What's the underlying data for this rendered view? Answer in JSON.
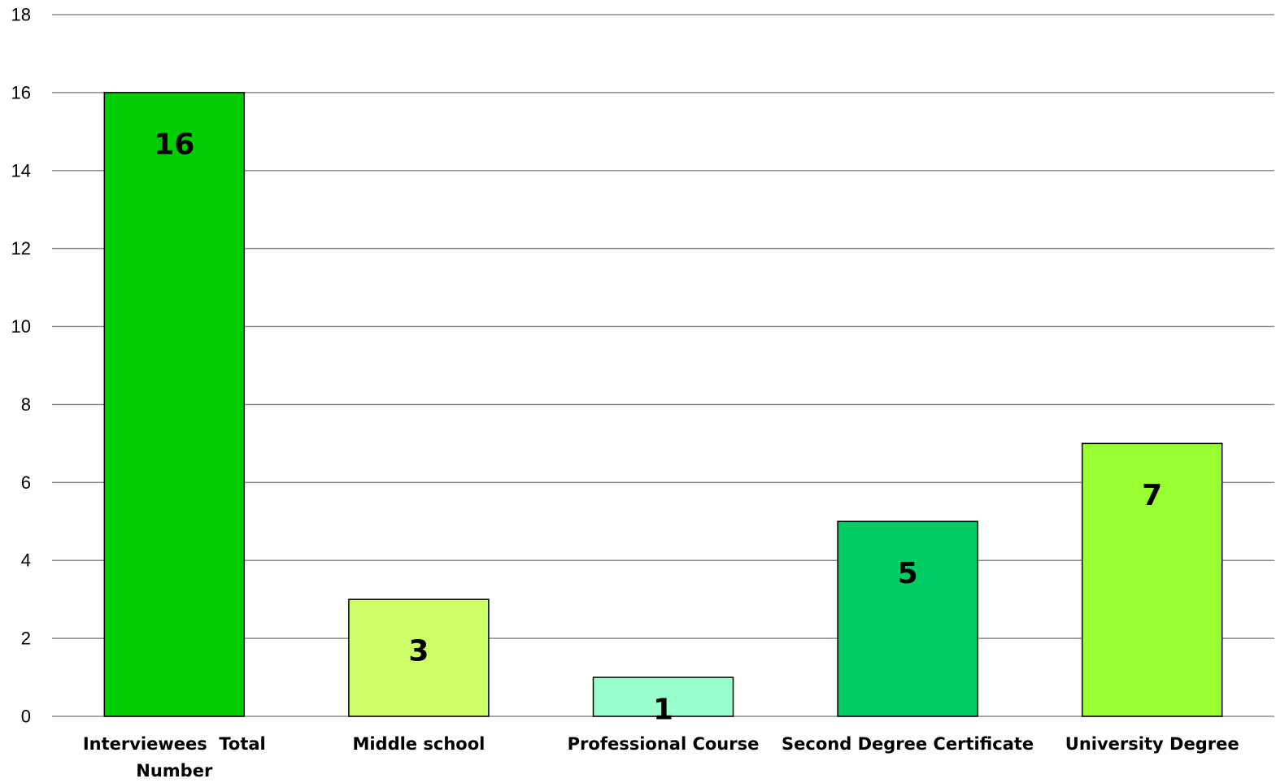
{
  "chart_data": {
    "type": "bar",
    "categories": [
      [
        "Interviewees  Total",
        "Number"
      ],
      [
        "Middle school"
      ],
      [
        "Professional Course"
      ],
      [
        "Second Degree Certificate"
      ],
      [
        "University Degree"
      ]
    ],
    "values": [
      16,
      3,
      1,
      5,
      7
    ],
    "data_labels": [
      "16",
      "3",
      "1",
      "5",
      "7"
    ],
    "colors": [
      "#00cc00",
      "#ccff66",
      "#99ffcc",
      "#00cc66",
      "#99ff33"
    ],
    "title": "",
    "xlabel": "",
    "ylabel": "",
    "ylim": [
      0,
      18
    ],
    "yticks": [
      "0",
      "2",
      "4",
      "6",
      "8",
      "10",
      "12",
      "14",
      "16",
      "18"
    ],
    "grid": true,
    "legend": "none"
  }
}
